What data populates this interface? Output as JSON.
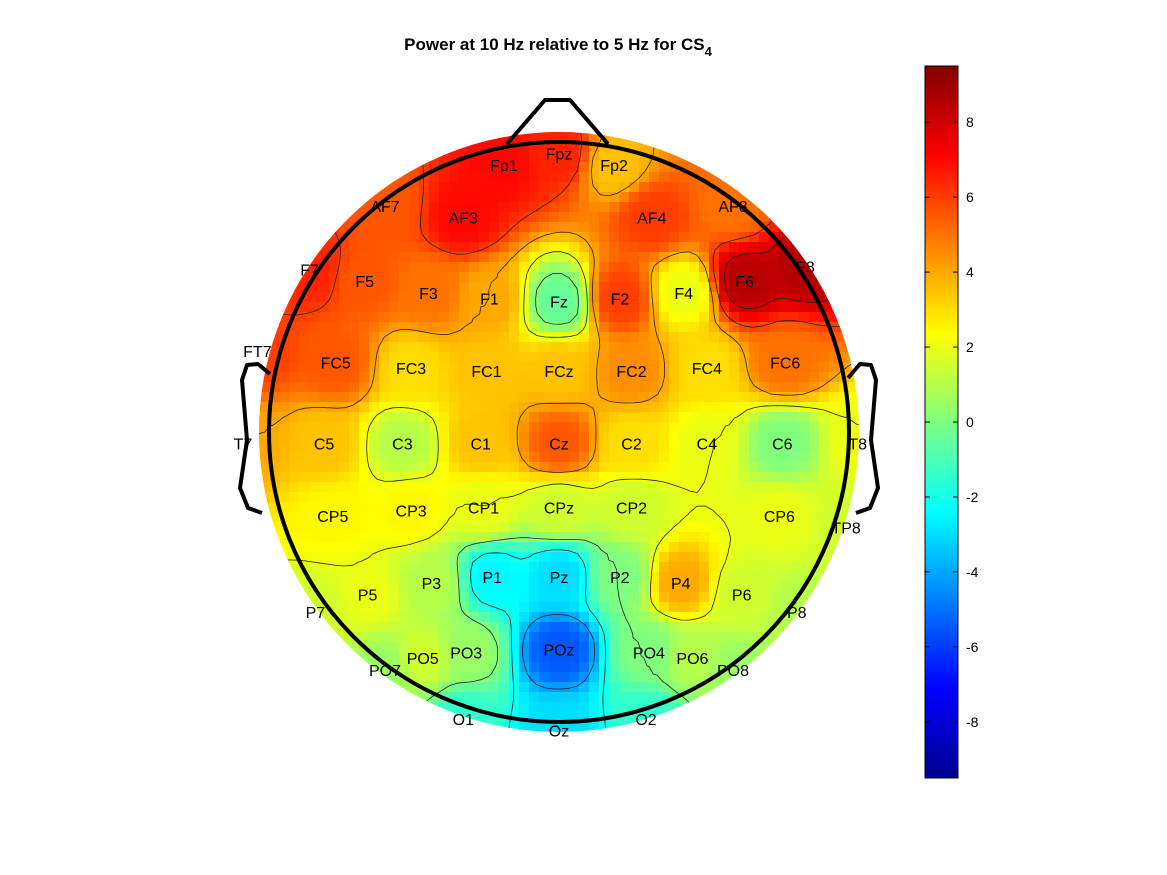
{
  "chart_data": {
    "type": "heatmap",
    "subtype": "eeg-topoplot",
    "title": {
      "main": "Power at 10 Hz relative to 5 Hz for CS",
      "subscript": "4"
    },
    "colormap": "jet",
    "color_range": [
      -9.5,
      9.5
    ],
    "colorbar": {
      "placement": "right",
      "ticks": [
        8,
        6,
        4,
        2,
        0,
        -2,
        -4,
        -6,
        -8
      ],
      "tick_labels": [
        "8",
        "6",
        "4",
        "2",
        "0",
        "-2",
        "-4",
        "-6",
        "-8"
      ]
    },
    "contours": true,
    "electrodes": [
      {
        "label": "Fp1",
        "u": -0.19,
        "v": -0.92,
        "value": 7.0
      },
      {
        "label": "Fpz",
        "u": 0.0,
        "v": -0.96,
        "value": 6.5
      },
      {
        "label": "Fp2",
        "u": 0.19,
        "v": -0.92,
        "value": 3.5
      },
      {
        "label": "AF7",
        "u": -0.6,
        "v": -0.78,
        "value": 5.5
      },
      {
        "label": "AF3",
        "u": -0.33,
        "v": -0.74,
        "value": 7.0
      },
      {
        "label": "AF4",
        "u": 0.32,
        "v": -0.74,
        "value": 6.0
      },
      {
        "label": "AF8",
        "u": 0.6,
        "v": -0.78,
        "value": 5.0
      },
      {
        "label": "F7",
        "u": -0.86,
        "v": -0.56,
        "value": 6.5
      },
      {
        "label": "F5",
        "u": -0.67,
        "v": -0.52,
        "value": 5.5
      },
      {
        "label": "F3",
        "u": -0.45,
        "v": -0.48,
        "value": 5.0
      },
      {
        "label": "F1",
        "u": -0.24,
        "v": -0.46,
        "value": 4.0
      },
      {
        "label": "Fz",
        "u": 0.0,
        "v": -0.45,
        "value": -0.5
      },
      {
        "label": "F2",
        "u": 0.21,
        "v": -0.46,
        "value": 6.0
      },
      {
        "label": "F4",
        "u": 0.43,
        "v": -0.48,
        "value": 2.0
      },
      {
        "label": "F6",
        "u": 0.64,
        "v": -0.52,
        "value": 8.5
      },
      {
        "label": "F8",
        "u": 0.85,
        "v": -0.57,
        "value": 8.5
      },
      {
        "label": "FT7",
        "u": -1.04,
        "v": -0.28,
        "value": 6.0
      },
      {
        "label": "FC5",
        "u": -0.77,
        "v": -0.24,
        "value": 5.5
      },
      {
        "label": "FC3",
        "u": -0.51,
        "v": -0.22,
        "value": 3.0
      },
      {
        "label": "FC1",
        "u": -0.25,
        "v": -0.21,
        "value": 3.5
      },
      {
        "label": "FCz",
        "u": 0.0,
        "v": -0.21,
        "value": 3.5
      },
      {
        "label": "FC2",
        "u": 0.25,
        "v": -0.21,
        "value": 4.5
      },
      {
        "label": "FC4",
        "u": 0.51,
        "v": -0.22,
        "value": 3.0
      },
      {
        "label": "FC6",
        "u": 0.78,
        "v": -0.24,
        "value": 5.0
      },
      {
        "label": "T7",
        "u": -1.09,
        "v": 0.04,
        "value": 4.0
      },
      {
        "label": "C5",
        "u": -0.81,
        "v": 0.04,
        "value": 3.5
      },
      {
        "label": "C3",
        "u": -0.54,
        "v": 0.04,
        "value": 1.0
      },
      {
        "label": "C1",
        "u": -0.27,
        "v": 0.04,
        "value": 3.5
      },
      {
        "label": "Cz",
        "u": 0.0,
        "v": 0.04,
        "value": 5.5
      },
      {
        "label": "C2",
        "u": 0.25,
        "v": 0.04,
        "value": 3.0
      },
      {
        "label": "C4",
        "u": 0.51,
        "v": 0.04,
        "value": 2.0
      },
      {
        "label": "C6",
        "u": 0.77,
        "v": 0.04,
        "value": 0.0
      },
      {
        "label": "T8",
        "u": 1.03,
        "v": 0.04,
        "value": 2.0
      },
      {
        "label": "CP5",
        "u": -0.78,
        "v": 0.29,
        "value": 2.5
      },
      {
        "label": "CP3",
        "u": -0.51,
        "v": 0.27,
        "value": 2.5
      },
      {
        "label": "CP1",
        "u": -0.26,
        "v": 0.26,
        "value": 2.0
      },
      {
        "label": "CPz",
        "u": 0.0,
        "v": 0.26,
        "value": 1.5
      },
      {
        "label": "CP2",
        "u": 0.25,
        "v": 0.26,
        "value": 1.5
      },
      {
        "label": "CP6",
        "u": 0.76,
        "v": 0.29,
        "value": 2.0
      },
      {
        "label": "TP8",
        "u": 0.99,
        "v": 0.33,
        "value": 1.5
      },
      {
        "label": "P7",
        "u": -0.84,
        "v": 0.62,
        "value": 1.5
      },
      {
        "label": "P5",
        "u": -0.66,
        "v": 0.56,
        "value": 2.0
      },
      {
        "label": "P3",
        "u": -0.44,
        "v": 0.52,
        "value": 1.0
      },
      {
        "label": "P1",
        "u": -0.23,
        "v": 0.5,
        "value": -2.5
      },
      {
        "label": "Pz",
        "u": 0.0,
        "v": 0.5,
        "value": -3.0
      },
      {
        "label": "P2",
        "u": 0.21,
        "v": 0.5,
        "value": 0.0
      },
      {
        "label": "P4",
        "u": 0.42,
        "v": 0.52,
        "value": 4.0
      },
      {
        "label": "P6",
        "u": 0.63,
        "v": 0.56,
        "value": 1.5
      },
      {
        "label": "P8",
        "u": 0.82,
        "v": 0.62,
        "value": 1.0
      },
      {
        "label": "PO7",
        "u": -0.6,
        "v": 0.82,
        "value": 0.5
      },
      {
        "label": "PO5",
        "u": -0.47,
        "v": 0.78,
        "value": 1.5
      },
      {
        "label": "PO3",
        "u": -0.32,
        "v": 0.76,
        "value": 0.5
      },
      {
        "label": "POz",
        "u": 0.0,
        "v": 0.75,
        "value": -5.5
      },
      {
        "label": "PO4",
        "u": 0.31,
        "v": 0.76,
        "value": 0.0
      },
      {
        "label": "PO6",
        "u": 0.46,
        "v": 0.78,
        "value": 1.0
      },
      {
        "label": "PO8",
        "u": 0.6,
        "v": 0.82,
        "value": 0.5
      },
      {
        "label": "O1",
        "u": -0.33,
        "v": 0.99,
        "value": -1.5
      },
      {
        "label": "Oz",
        "u": 0.0,
        "v": 1.03,
        "value": -3.0
      },
      {
        "label": "O2",
        "u": 0.3,
        "v": 0.99,
        "value": -1.5
      }
    ]
  }
}
